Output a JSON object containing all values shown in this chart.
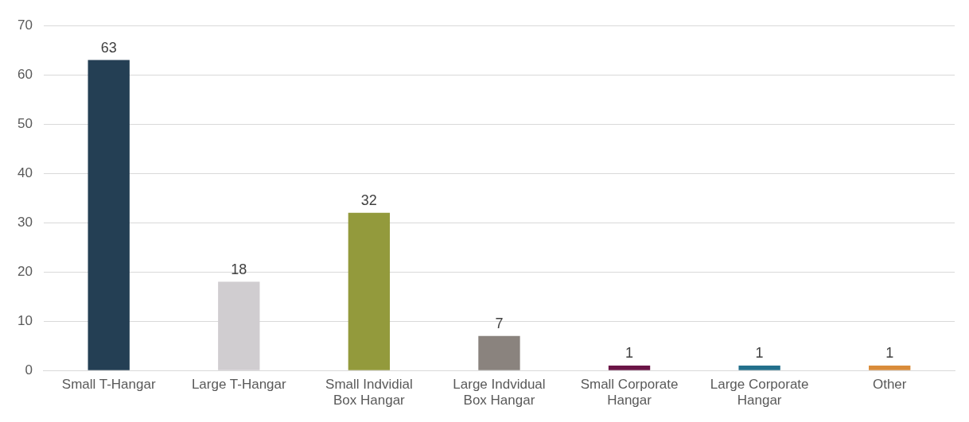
{
  "chart_data": {
    "type": "bar",
    "categories": [
      "Small T-Hangar",
      "Large T-Hangar",
      "Small Indvidial Box Hangar",
      "Large Indvidual Box Hangar",
      "Small Corporate Hangar",
      "Large Corporate Hangar",
      "Other"
    ],
    "values": [
      63,
      18,
      32,
      7,
      1,
      1,
      1
    ],
    "colors": [
      "#243f54",
      "#d0cdd0",
      "#939a3c",
      "#8a837e",
      "#6b1446",
      "#23708c",
      "#d98c3a"
    ],
    "ylim": [
      0,
      70
    ],
    "yticks": [
      0,
      10,
      20,
      30,
      40,
      50,
      60,
      70
    ],
    "grid": "y",
    "data_labels": true,
    "legend": false
  }
}
